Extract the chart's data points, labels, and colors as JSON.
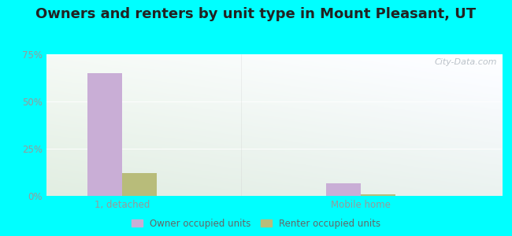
{
  "title": "Owners and renters by unit type in Mount Pleasant, UT",
  "categories": [
    "1, detached",
    "Mobile home"
  ],
  "owner_values": [
    65.0,
    6.5
  ],
  "renter_values": [
    12.0,
    1.0
  ],
  "owner_color": "#c9aed6",
  "renter_color": "#b8bc7a",
  "ylim": [
    0,
    75
  ],
  "yticks": [
    0,
    25,
    50,
    75
  ],
  "ytick_labels": [
    "0%",
    "25%",
    "50%",
    "75%"
  ],
  "background_outer": "#00ffff",
  "title_fontsize": 13,
  "axis_label_color": "#999999",
  "bar_width": 0.32,
  "group_positions": [
    1.0,
    3.2
  ],
  "legend_labels": [
    "Owner occupied units",
    "Renter occupied units"
  ],
  "watermark": "City-Data.com"
}
